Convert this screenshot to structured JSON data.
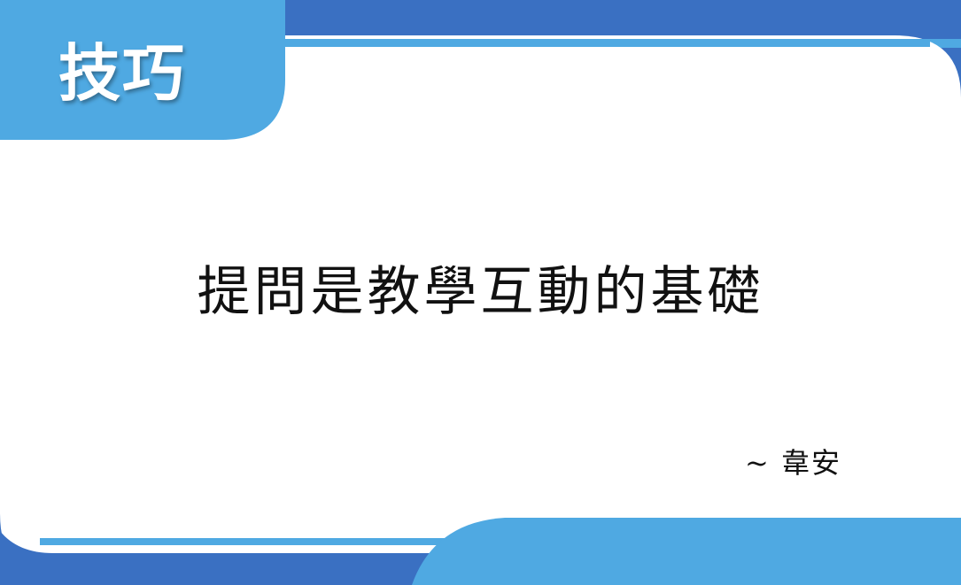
{
  "slide": {
    "tag": "技巧",
    "quote": "提問是教學互動的基礎",
    "author": "~ 韋安"
  },
  "colors": {
    "dark_blue": "#3a70c2",
    "light_blue": "#4fa9e2",
    "background": "#ffffff",
    "text": "#111111"
  }
}
